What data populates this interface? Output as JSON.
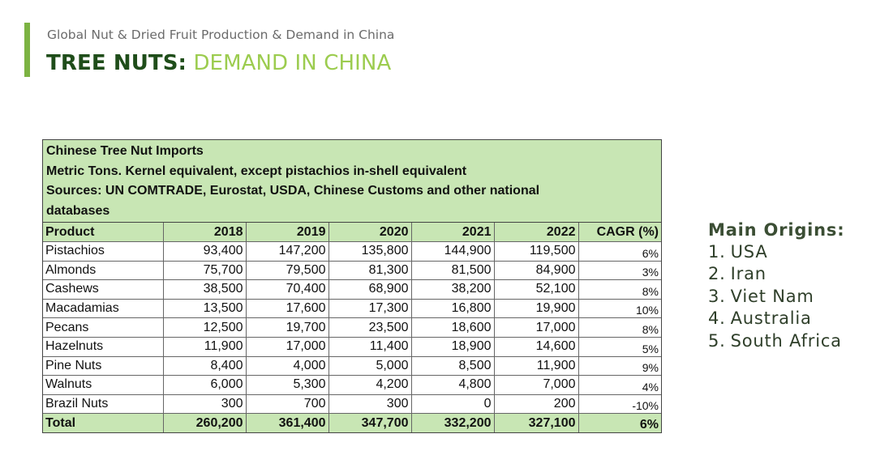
{
  "header": {
    "subtitle": "Global Nut & Dried Fruit Production & Demand in China",
    "title_bold": "TREE NUTS:",
    "title_light": "DEMAND IN CHINA"
  },
  "table_header": {
    "line1": "Chinese Tree Nut Imports",
    "line2": "Metric Tons. Kernel equivalent, except pistachios in-shell equivalent",
    "line3": "Sources: UN COMTRADE, Eurostat, USDA, Chinese Customs and other national",
    "line4": "databases"
  },
  "main_origins": {
    "title": "Main Origins:",
    "items": [
      {
        "num": "1.",
        "name": "USA"
      },
      {
        "num": "2.",
        "name": "Iran"
      },
      {
        "num": "3.",
        "name": "Viet Nam"
      },
      {
        "num": "4.",
        "name": "Australia"
      },
      {
        "num": "5.",
        "name": "South Africa"
      }
    ]
  },
  "colors": {
    "accent": "#7cb342",
    "title_dark": "#1f4d1a",
    "title_light": "#9ccc4f",
    "table_fill": "#c8e6b4"
  },
  "chart_data": {
    "type": "table",
    "title": "Chinese Tree Nut Imports",
    "columns": [
      "Product",
      "2018",
      "2019",
      "2020",
      "2021",
      "2022",
      "CAGR (%)"
    ],
    "rows": [
      [
        "Pistachios",
        "93,400",
        "147,200",
        "135,800",
        "144,900",
        "119,500",
        "6%"
      ],
      [
        "Almonds",
        "75,700",
        "79,500",
        "81,300",
        "81,500",
        "84,900",
        "3%"
      ],
      [
        "Cashews",
        "38,500",
        "70,400",
        "68,900",
        "38,200",
        "52,100",
        "8%"
      ],
      [
        "Macadamias",
        "13,500",
        "17,600",
        "17,300",
        "16,800",
        "19,900",
        "10%"
      ],
      [
        "Pecans",
        "12,500",
        "19,700",
        "23,500",
        "18,600",
        "17,000",
        "8%"
      ],
      [
        "Hazelnuts",
        "11,900",
        "17,000",
        "11,400",
        "18,900",
        "14,600",
        "5%"
      ],
      [
        "Pine Nuts",
        "8,400",
        "4,000",
        "5,000",
        "8,500",
        "11,900",
        "9%"
      ],
      [
        "Walnuts",
        "6,000",
        "5,300",
        "4,200",
        "4,800",
        "7,000",
        "4%"
      ],
      [
        "Brazil Nuts",
        "300",
        "700",
        "300",
        "0",
        "200",
        "-10%"
      ]
    ],
    "total": [
      "Total",
      "260,200",
      "361,400",
      "347,700",
      "332,200",
      "327,100",
      "6%"
    ]
  }
}
